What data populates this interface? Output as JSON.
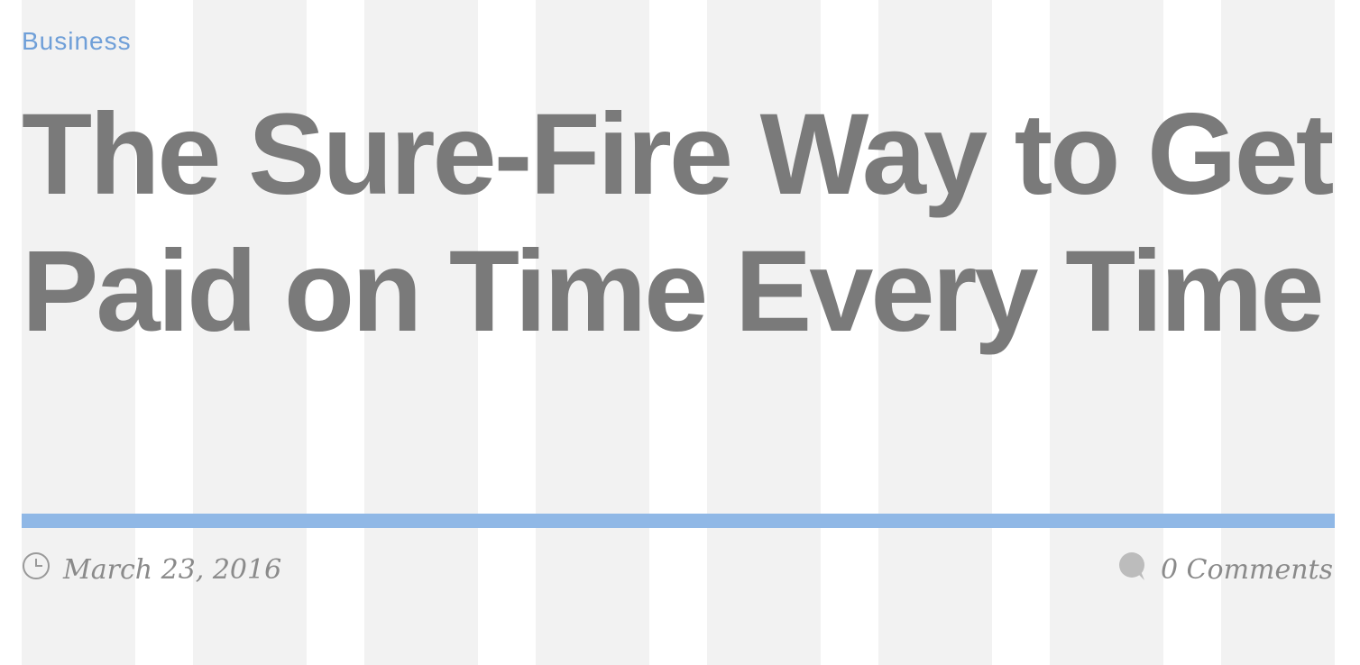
{
  "post": {
    "category": "Business",
    "title": "The Sure-Fire Way to Get Paid on Time Every Time",
    "date": "March 23, 2016",
    "comments": "0 Comments"
  },
  "icons": {
    "date": "clock-icon",
    "comments": "speech-bubble-icon"
  },
  "colors": {
    "accent": "#4a90e2",
    "grid_column": "#f2f2f2",
    "title_text": "#4a4a4a"
  }
}
